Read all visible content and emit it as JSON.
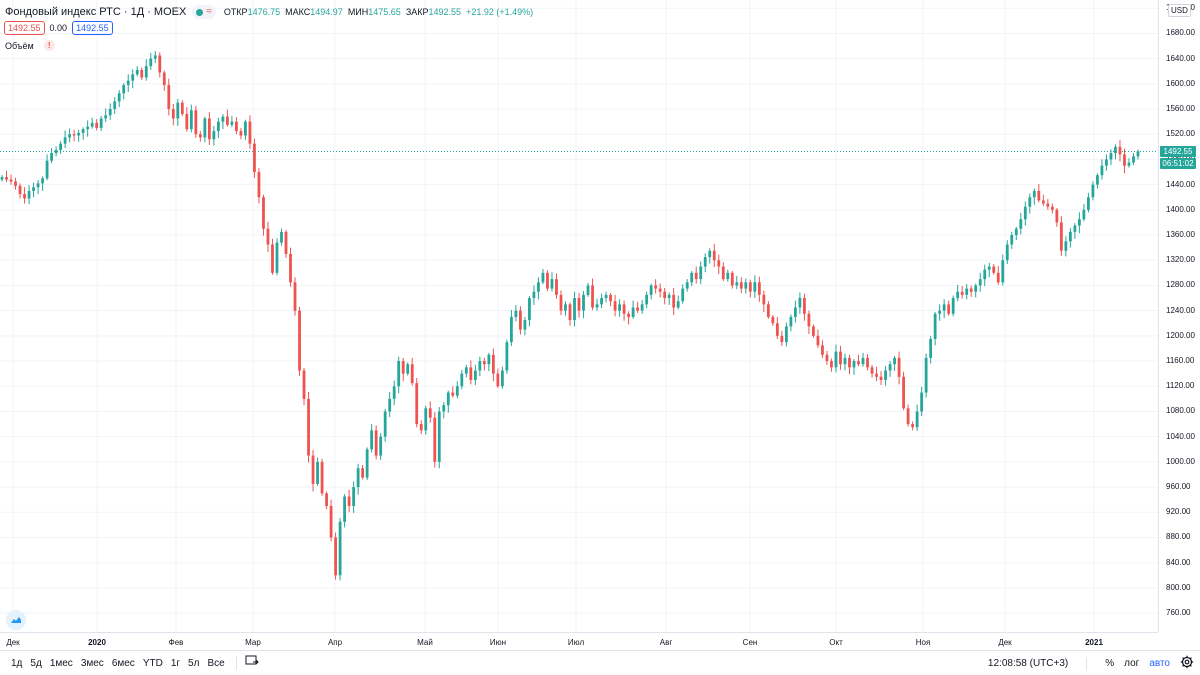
{
  "legend": {
    "title": "Фондовый индекс РТС · 1Д · MOEX",
    "open_label": "ОТКР",
    "open": "1476.75",
    "high_label": "МАКС",
    "high": "1494.97",
    "low_label": "МИН",
    "low": "1475.65",
    "close_label": "ЗАКР",
    "close": "1492.55",
    "change": "+21.92 (+1.49%)",
    "eye_wave": "≈"
  },
  "price_boxes": {
    "left": "1492.55",
    "middle": "0.00",
    "right": "1492.55"
  },
  "volume": {
    "label": "Объём",
    "warning": "!"
  },
  "currency": "USD",
  "last_price_tag": "1492.55",
  "countdown_tag": "06:51:02",
  "bottom_bar": {
    "ranges": [
      "1д",
      "5д",
      "1мес",
      "3мес",
      "6мес",
      "YTD",
      "1г",
      "5л",
      "Все"
    ],
    "clock": "12:08:58 (UTC+3)",
    "percent": "%",
    "log": "лог",
    "auto": "авто"
  },
  "colors": {
    "up": "#26a69a",
    "down": "#ef5350",
    "grid": "#f0f3fa",
    "accent": "#2962ff"
  },
  "chart_data": {
    "type": "candlestick",
    "y_ticks": [
      760,
      800,
      840,
      880,
      920,
      960,
      1000,
      1040,
      1080,
      1120,
      1160,
      1200,
      1240,
      1280,
      1320,
      1360,
      1400,
      1440,
      1480,
      1520,
      1560,
      1600,
      1640,
      1680,
      1720
    ],
    "y_tick_labels": [
      "760.00",
      "800.00",
      "840.00",
      "880.00",
      "920.00",
      "960.00",
      "1000.00",
      "1040.00",
      "1080.00",
      "1120.00",
      "1160.00",
      "1200.00",
      "1240.00",
      "1280.00",
      "1320.00",
      "1360.00",
      "1400.00",
      "1440.00",
      "1480.00",
      "1520.00",
      "1560.00",
      "1600.00",
      "1640.00",
      "1680.00",
      "1720.00"
    ],
    "ylim": [
      730,
      1733
    ],
    "x_labels": [
      {
        "text": "Дек",
        "bold": false
      },
      {
        "text": "2020",
        "bold": true
      },
      {
        "text": "Фев",
        "bold": false
      },
      {
        "text": "Мар",
        "bold": false
      },
      {
        "text": "Апр",
        "bold": false
      },
      {
        "text": "Май",
        "bold": false
      },
      {
        "text": "Июн",
        "bold": false
      },
      {
        "text": "Июл",
        "bold": false
      },
      {
        "text": "Авг",
        "bold": false
      },
      {
        "text": "Сен",
        "bold": false
      },
      {
        "text": "Окт",
        "bold": false
      },
      {
        "text": "Ноя",
        "bold": false
      },
      {
        "text": "Дек",
        "bold": false
      },
      {
        "text": "2021",
        "bold": true
      }
    ],
    "last_price": 1492.55,
    "closes": [
      1452,
      1448,
      1445,
      1438,
      1425,
      1418,
      1430,
      1436,
      1442,
      1450,
      1478,
      1490,
      1495,
      1505,
      1515,
      1520,
      1518,
      1522,
      1528,
      1532,
      1538,
      1530,
      1545,
      1550,
      1560,
      1572,
      1585,
      1598,
      1605,
      1615,
      1622,
      1610,
      1628,
      1640,
      1645,
      1618,
      1598,
      1560,
      1545,
      1570,
      1552,
      1528,
      1558,
      1520,
      1515,
      1545,
      1512,
      1525,
      1540,
      1548,
      1535,
      1540,
      1525,
      1518,
      1540,
      1505,
      1460,
      1420,
      1370,
      1345,
      1300,
      1348,
      1365,
      1330,
      1285,
      1240,
      1145,
      1100,
      1010,
      965,
      1000,
      950,
      930,
      880,
      820,
      905,
      945,
      930,
      960,
      990,
      975,
      1020,
      1050,
      1010,
      1040,
      1080,
      1100,
      1120,
      1160,
      1140,
      1155,
      1125,
      1060,
      1050,
      1085,
      1070,
      1000,
      1080,
      1090,
      1110,
      1105,
      1120,
      1140,
      1150,
      1130,
      1145,
      1160,
      1155,
      1170,
      1140,
      1120,
      1145,
      1190,
      1230,
      1240,
      1210,
      1225,
      1260,
      1270,
      1285,
      1300,
      1275,
      1290,
      1265,
      1240,
      1250,
      1225,
      1260,
      1240,
      1265,
      1280,
      1245,
      1250,
      1260,
      1265,
      1255,
      1240,
      1250,
      1235,
      1230,
      1245,
      1240,
      1250,
      1265,
      1280,
      1275,
      1270,
      1260,
      1265,
      1245,
      1255,
      1275,
      1285,
      1300,
      1290,
      1310,
      1325,
      1335,
      1320,
      1310,
      1290,
      1300,
      1280,
      1285,
      1275,
      1285,
      1270,
      1285,
      1265,
      1250,
      1230,
      1220,
      1200,
      1190,
      1215,
      1230,
      1245,
      1260,
      1235,
      1215,
      1200,
      1185,
      1170,
      1160,
      1150,
      1175,
      1155,
      1165,
      1150,
      1160,
      1155,
      1165,
      1150,
      1140,
      1135,
      1130,
      1145,
      1155,
      1165,
      1135,
      1085,
      1060,
      1055,
      1080,
      1110,
      1165,
      1195,
      1235,
      1240,
      1250,
      1235,
      1260,
      1270,
      1265,
      1275,
      1270,
      1280,
      1290,
      1305,
      1310,
      1300,
      1285,
      1320,
      1345,
      1360,
      1370,
      1385,
      1405,
      1420,
      1430,
      1415,
      1410,
      1405,
      1400,
      1380,
      1335,
      1350,
      1365,
      1375,
      1385,
      1400,
      1420,
      1440,
      1455,
      1470,
      1480,
      1490,
      1500,
      1488,
      1470,
      1475,
      1485,
      1492.55
    ]
  }
}
